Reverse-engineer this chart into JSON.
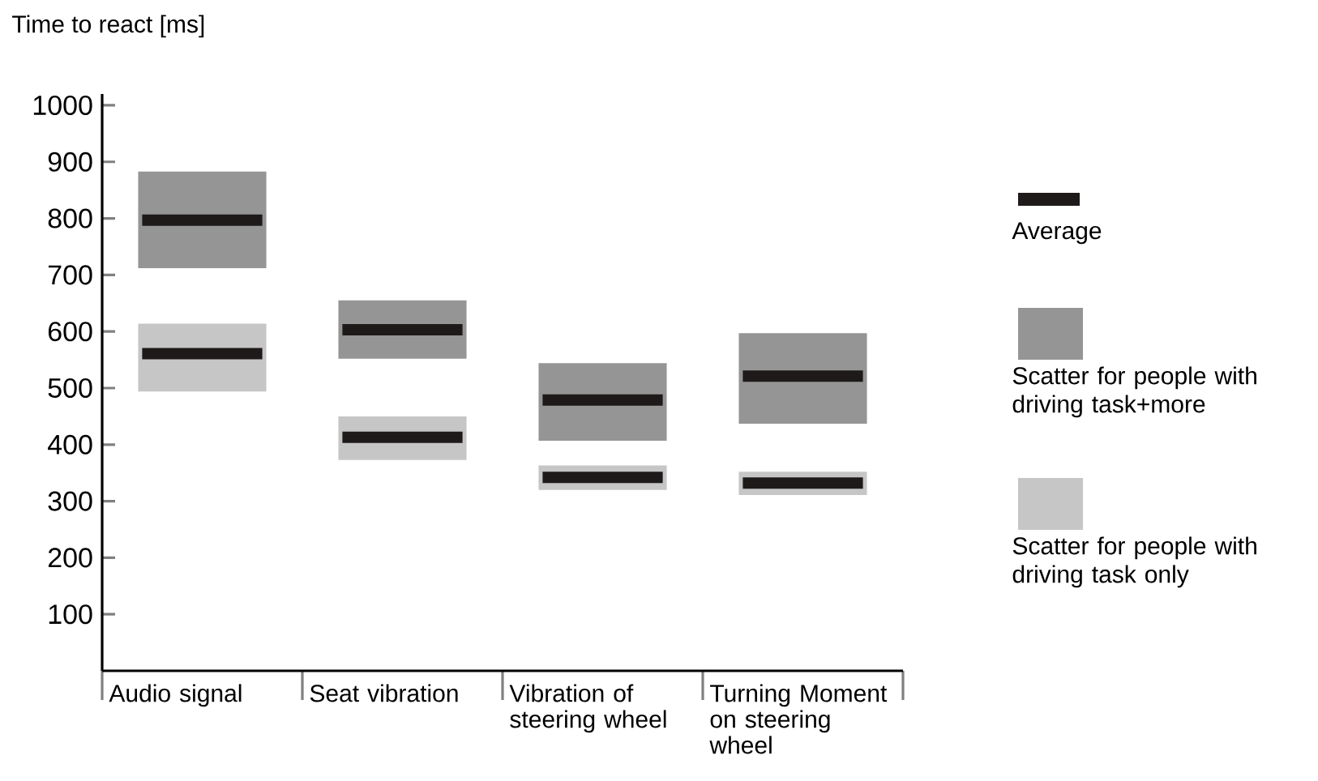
{
  "chart_data": {
    "type": "box",
    "ylabel": "Time to react [ms]",
    "categories": [
      "Audio signal",
      "Seat vibration",
      "Vibration of steering wheel",
      "Turning Moment on steering wheel"
    ],
    "series": [
      {
        "name": "Scatter for people with driving task+more",
        "color": "#959595",
        "boxes": [
          {
            "low": 712,
            "q1": 712,
            "median": 797,
            "q3": 883,
            "high": 883
          },
          {
            "low": 552,
            "q1": 552,
            "median": 603,
            "q3": 655,
            "high": 655
          },
          {
            "low": 407,
            "q1": 407,
            "median": 479,
            "q3": 544,
            "high": 544
          },
          {
            "low": 437,
            "q1": 437,
            "median": 521,
            "q3": 597,
            "high": 597
          }
        ]
      },
      {
        "name": "Scatter for people with driving task only",
        "color": "#c6c6c6",
        "boxes": [
          {
            "low": 494,
            "q1": 494,
            "median": 561,
            "q3": 614,
            "high": 614
          },
          {
            "low": 373,
            "q1": 373,
            "median": 413,
            "q3": 450,
            "high": 450
          },
          {
            "low": 320,
            "q1": 320,
            "median": 342,
            "q3": 363,
            "high": 363
          },
          {
            "low": 311,
            "q1": 311,
            "median": 332,
            "q3": 352,
            "high": 352
          }
        ]
      }
    ],
    "annotations": [
      "Average"
    ],
    "ylim": [
      0,
      1020
    ],
    "yticks": [
      100,
      200,
      300,
      400,
      500,
      600,
      700,
      800,
      900,
      1000
    ],
    "legend": "right"
  }
}
